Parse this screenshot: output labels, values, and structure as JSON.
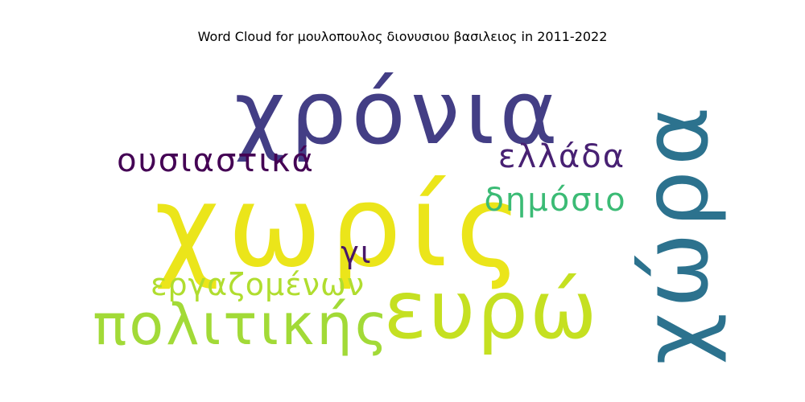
{
  "title": "Word Cloud for μουλοπουλος διονυσιου βασιλειος in 2011-2022",
  "chart_data": {
    "type": "wordcloud",
    "title": "Word Cloud for μουλοπουλος διονυσιου βασιλειος in 2011-2022",
    "words": [
      {
        "text": "χωρίς",
        "color": "#ebe51a"
      },
      {
        "text": "χρόνια",
        "color": "#433e85"
      },
      {
        "text": "χώρα",
        "color": "#2c728e"
      },
      {
        "text": "ευρώ",
        "color": "#c5e021"
      },
      {
        "text": "πολιτικής",
        "color": "#a2da37"
      },
      {
        "text": "ουσιαστικά",
        "color": "#440154"
      },
      {
        "text": "ελλάδα",
        "color": "#482173"
      },
      {
        "text": "δημόσιο",
        "color": "#3bbb75"
      },
      {
        "text": "εργαζομένων",
        "color": "#b0dd2f"
      },
      {
        "text": "γι",
        "color": "#481769"
      }
    ]
  }
}
